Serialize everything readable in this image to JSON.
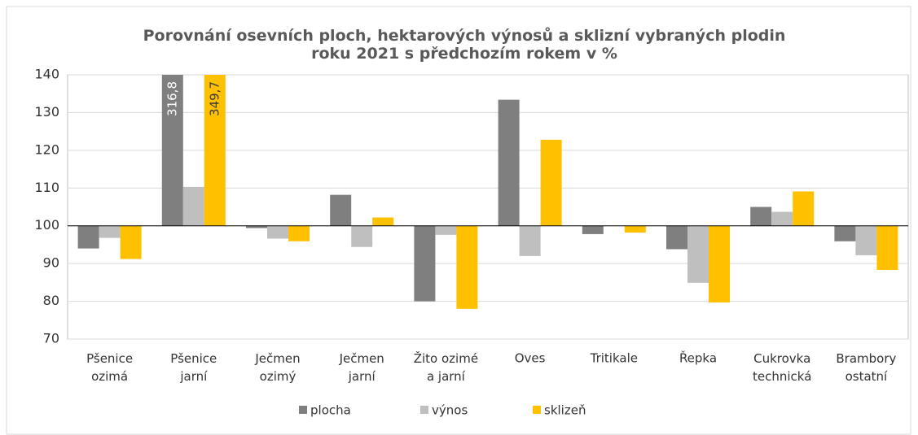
{
  "chart_data": {
    "type": "bar",
    "title": "Porovnání osevních ploch, hektarových výnosů a sklizní vybraných plodin\nroku 2021 s předchozím rokem v %",
    "categories": [
      "Pšenice\nozimá",
      "Pšenice\njarní",
      "Ječmen\nozimý",
      "Ječmen\njarní",
      "Žito ozimé\na jarní",
      "Oves",
      "Tritikale",
      "Řepka",
      "Cukrovka\ntechnická",
      "Brambory\nostatní"
    ],
    "series": [
      {
        "name": "plocha",
        "color": "#7f7f7f",
        "label_color": "#ffffff",
        "values": [
          94.0,
          316.8,
          99.4,
          108.2,
          80.0,
          133.4,
          97.8,
          93.8,
          105.0,
          95.9
        ],
        "value_labels": [
          null,
          "316,8",
          null,
          null,
          null,
          null,
          null,
          null,
          null,
          null
        ]
      },
      {
        "name": "výnos",
        "color": "#bfbfbf",
        "label_color": "#000000",
        "values": [
          96.8,
          110.3,
          96.6,
          94.4,
          97.6,
          92.0,
          100.0,
          84.9,
          103.7,
          92.2
        ],
        "value_labels": [
          null,
          null,
          null,
          null,
          null,
          null,
          null,
          null,
          null,
          null
        ]
      },
      {
        "name": "sklizeň",
        "color": "#ffc000",
        "label_color": "#3a3a3a",
        "values": [
          91.2,
          349.7,
          95.9,
          102.2,
          78.0,
          122.8,
          98.2,
          79.7,
          109.1,
          88.3
        ],
        "value_labels": [
          null,
          "349,7",
          null,
          null,
          null,
          null,
          null,
          null,
          null,
          null
        ]
      }
    ],
    "ylim": [
      70,
      140
    ],
    "yticks": [
      70,
      80,
      90,
      100,
      110,
      120,
      130,
      140
    ],
    "baseline": 100,
    "grid": true,
    "legend": "bottom"
  }
}
